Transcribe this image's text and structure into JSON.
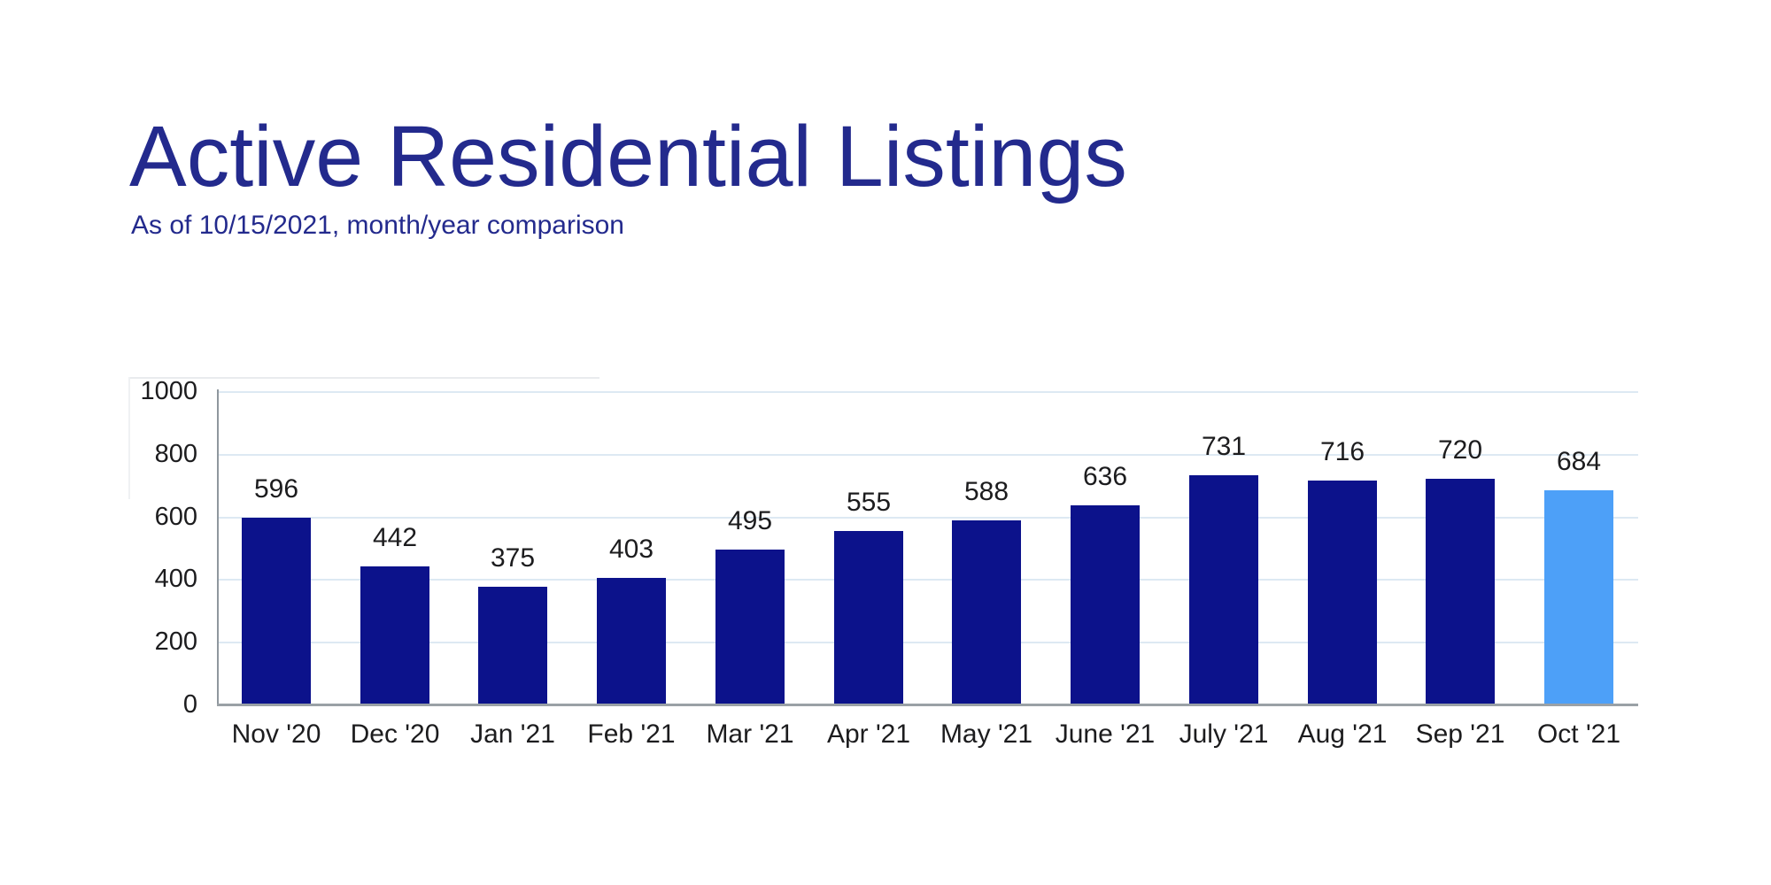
{
  "header": {
    "title": "Active Residential Listings",
    "subtitle": "As of 10/15/2021, month/year comparison",
    "title_color": "#232a8d"
  },
  "chart_data": {
    "type": "bar",
    "title": "Active Residential Listings",
    "subtitle": "As of 10/15/2021, month/year comparison",
    "categories": [
      "Nov '20",
      "Dec '20",
      "Jan '21",
      "Feb '21",
      "Mar '21",
      "Apr '21",
      "May '21",
      "June '21",
      "July '21",
      "Aug '21",
      "Sep '21",
      "Oct '21"
    ],
    "values": [
      596,
      442,
      375,
      403,
      495,
      555,
      588,
      636,
      731,
      716,
      720,
      684
    ],
    "highlight_index": 11,
    "data_labels": true,
    "xlabel": "",
    "ylabel": "",
    "ylim": [
      0,
      1000
    ],
    "y_ticks": [
      0,
      200,
      400,
      600,
      800,
      1000
    ],
    "grid": true,
    "legend": "none",
    "colors": {
      "bar": "#0c128b",
      "bar_highlight": "#4da0f8",
      "gridline": "#dde9f3",
      "axis": "#8f979e",
      "baseline": "#9aa1a6",
      "tick_text": "#1c1c1e"
    }
  }
}
